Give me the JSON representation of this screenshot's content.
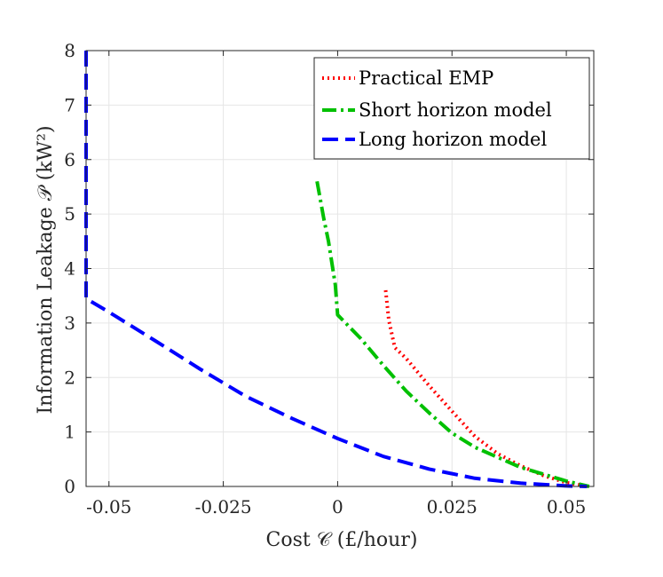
{
  "chart_data": {
    "type": "line",
    "title": "",
    "xlabel": "Cost 𝒞 (£/hour)",
    "ylabel": "Information Leakage 𝒫 (kW²)",
    "xlim": [
      -0.055,
      0.056
    ],
    "ylim": [
      0,
      8
    ],
    "xticks": [
      -0.05,
      -0.025,
      0,
      0.025,
      0.05
    ],
    "xtick_labels": [
      "-0.05",
      "-0.025",
      "0",
      "0.025",
      "0.05"
    ],
    "yticks": [
      0,
      1,
      2,
      3,
      4,
      5,
      6,
      7,
      8
    ],
    "ytick_labels": [
      "0",
      "1",
      "2",
      "3",
      "4",
      "5",
      "6",
      "7",
      "8"
    ],
    "grid": true,
    "legend_position": "top-right",
    "series": [
      {
        "name": "Practical EMP",
        "color": "#ff0000",
        "style": "dotted",
        "x": [
          0.0105,
          0.0112,
          0.0125,
          0.015,
          0.02,
          0.025,
          0.03,
          0.035,
          0.04,
          0.045,
          0.05,
          0.055
        ],
        "y": [
          3.6,
          3.05,
          2.55,
          2.35,
          1.85,
          1.38,
          0.92,
          0.6,
          0.38,
          0.2,
          0.07,
          0.0
        ]
      },
      {
        "name": "Short horizon model",
        "color": "#00c000",
        "style": "dashdot",
        "x": [
          -0.0045,
          -0.003,
          -0.002,
          -0.0005,
          0.0,
          0.005,
          0.01,
          0.015,
          0.02,
          0.025,
          0.03,
          0.04,
          0.05,
          0.055
        ],
        "y": [
          5.6,
          4.9,
          4.5,
          3.7,
          3.15,
          2.72,
          2.22,
          1.75,
          1.35,
          0.98,
          0.72,
          0.35,
          0.1,
          0.0
        ]
      },
      {
        "name": "Long horizon model",
        "color": "#0000ff",
        "style": "dashed",
        "x": [
          -0.055,
          -0.055,
          -0.055,
          -0.05,
          -0.04,
          -0.03,
          -0.02,
          -0.01,
          0.0,
          0.01,
          0.02,
          0.03,
          0.04,
          0.05,
          0.0545
        ],
        "y": [
          8.0,
          4.8,
          3.45,
          3.2,
          2.68,
          2.15,
          1.65,
          1.25,
          0.88,
          0.55,
          0.32,
          0.15,
          0.06,
          0.01,
          0.0
        ]
      }
    ]
  }
}
